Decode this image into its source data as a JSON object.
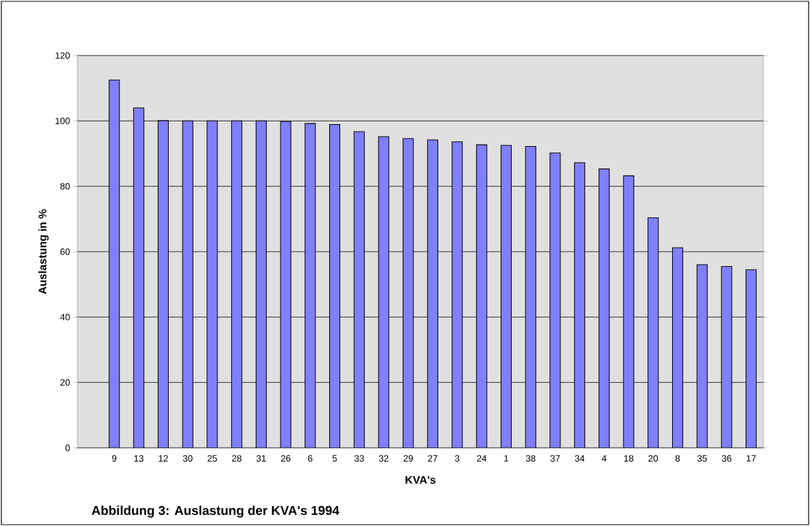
{
  "chart_data": {
    "type": "bar",
    "title": "Abbildung 3: Auslastung der KVA's 1994",
    "xlabel": "KVA's",
    "ylabel": "Auslastung in %",
    "categories": [
      "9",
      "13",
      "12",
      "30",
      "25",
      "28",
      "31",
      "26",
      "6",
      "5",
      "33",
      "32",
      "29",
      "27",
      "3",
      "24",
      "1",
      "38",
      "37",
      "34",
      "4",
      "18",
      "20",
      "8",
      "35",
      "36",
      "17"
    ],
    "values": [
      112.5,
      104.0,
      100.1,
      100.0,
      100.0,
      100.0,
      100.0,
      99.8,
      99.2,
      98.9,
      96.7,
      95.2,
      94.6,
      94.2,
      93.6,
      92.7,
      92.5,
      92.2,
      90.2,
      87.2,
      85.3,
      83.2,
      70.4,
      61.2,
      56.0,
      55.5,
      54.5
    ],
    "color": "#8080ff",
    "ylim": [
      0,
      120
    ],
    "yticks": [
      0,
      20,
      40,
      60,
      80,
      100,
      120
    ],
    "grid": "y"
  }
}
